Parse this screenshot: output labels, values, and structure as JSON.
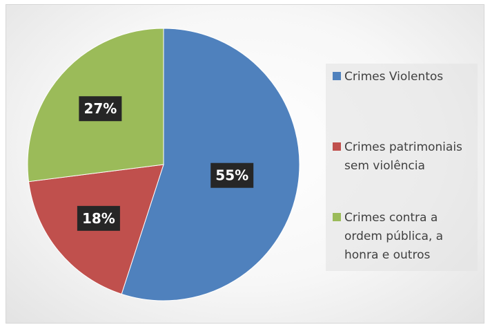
{
  "chart_data": {
    "type": "pie",
    "slices": [
      {
        "label": "Crimes Violentos",
        "value": 55,
        "data_label": "55%",
        "color": "#4f81bd"
      },
      {
        "label": "Crimes patrimoniais sem violência",
        "value": 18,
        "data_label": "18%",
        "color": "#c0504d"
      },
      {
        "label": "Crimes contra a ordem pública, a honra e outros",
        "value": 27,
        "data_label": "27%",
        "color": "#9bbb59"
      }
    ],
    "legend_position": "right",
    "start_angle": "12 o'clock",
    "direction": "clockwise"
  }
}
